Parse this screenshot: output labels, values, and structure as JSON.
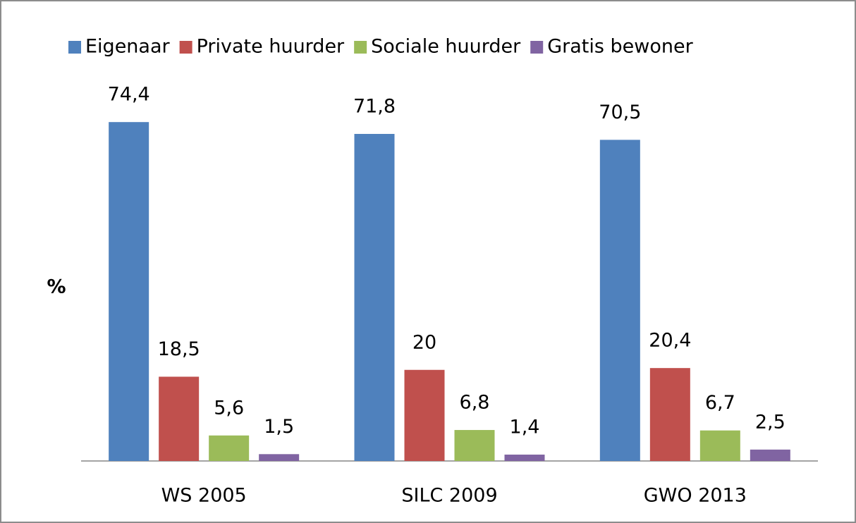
{
  "chart_data": {
    "type": "bar",
    "y_label": "%",
    "categories": [
      "WS 2005",
      "SILC 2009",
      "GWO 2013"
    ],
    "series": [
      {
        "name": "Eigenaar",
        "color": "#4f81bd",
        "values": [
          74.4,
          71.8,
          70.5
        ],
        "value_labels": [
          "74,4",
          "71,8",
          "70,5"
        ]
      },
      {
        "name": "Private huurder",
        "color": "#c0504d",
        "values": [
          18.5,
          20,
          20.4
        ],
        "value_labels": [
          "18,5",
          "20",
          "20,4"
        ]
      },
      {
        "name": "Sociale huurder",
        "color": "#9bbb59",
        "values": [
          5.6,
          6.8,
          6.7
        ],
        "value_labels": [
          "5,6",
          "6,8",
          "6,7"
        ]
      },
      {
        "name": "Gratis bewoner",
        "color": "#8064a2",
        "values": [
          1.5,
          1.4,
          2.5
        ],
        "value_labels": [
          "1,5",
          "1,4",
          "2,5"
        ]
      }
    ],
    "ylim": [
      0,
      80
    ],
    "legend": "top"
  }
}
